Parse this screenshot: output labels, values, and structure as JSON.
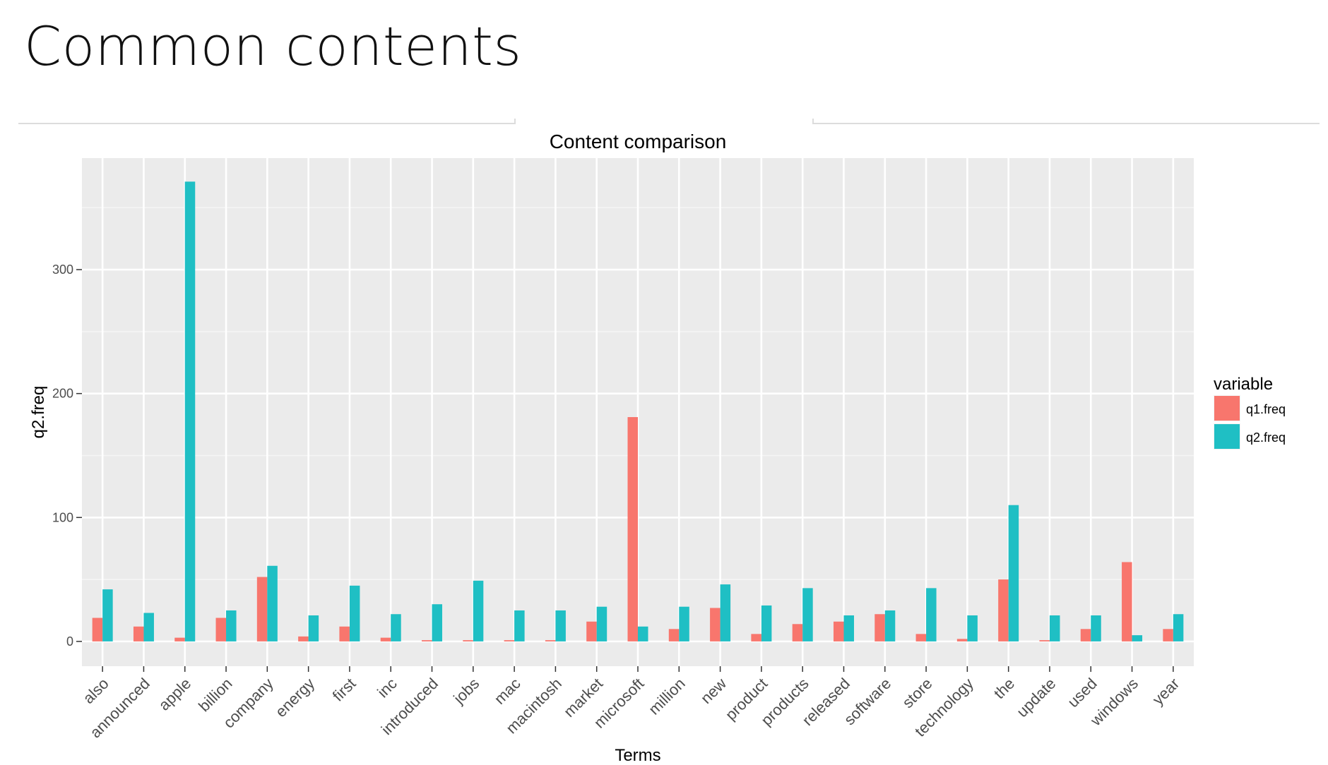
{
  "slide": {
    "title": "Common contents"
  },
  "chart_data": {
    "type": "bar",
    "title": "Content comparison",
    "xlabel": "Terms",
    "ylabel": "q2.freq",
    "ylim": [
      -20,
      390
    ],
    "yticks": [
      0,
      100,
      200,
      300
    ],
    "grid": true,
    "legend": {
      "title": "variable",
      "position": "right"
    },
    "categories": [
      "also",
      "announced",
      "apple",
      "billion",
      "company",
      "energy",
      "first",
      "inc",
      "introduced",
      "jobs",
      "mac",
      "macintosh",
      "market",
      "microsoft",
      "million",
      "new",
      "product",
      "products",
      "released",
      "software",
      "store",
      "technology",
      "the",
      "update",
      "used",
      "windows",
      "year"
    ],
    "series": [
      {
        "name": "q1.freq",
        "color": "#F8766D",
        "values": [
          19,
          12,
          3,
          19,
          52,
          4,
          12,
          3,
          1,
          1,
          1,
          1,
          16,
          181,
          10,
          27,
          6,
          14,
          16,
          22,
          6,
          2,
          50,
          1,
          10,
          64,
          10
        ]
      },
      {
        "name": "q2.freq",
        "color": "#1FBFC4",
        "values": [
          42,
          23,
          371,
          25,
          61,
          21,
          45,
          22,
          30,
          49,
          25,
          25,
          28,
          12,
          28,
          46,
          29,
          43,
          21,
          25,
          43,
          21,
          110,
          21,
          21,
          5,
          22
        ]
      }
    ]
  }
}
